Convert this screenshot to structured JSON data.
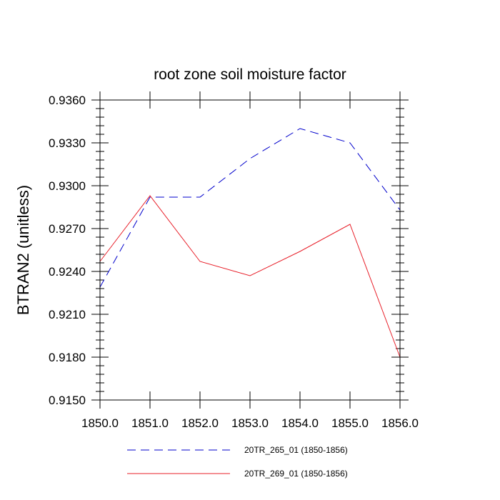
{
  "chart_data": {
    "type": "line",
    "title": "root zone soil moisture factor",
    "xlabel": "",
    "ylabel": "BTRAN2  (unitless)",
    "xlim": [
      1850,
      1856
    ],
    "ylim": [
      0.915,
      0.936
    ],
    "x": [
      1850,
      1851,
      1852,
      1853,
      1854,
      1855,
      1856
    ],
    "xticks": [
      "1850.0",
      "1851.0",
      "1852.0",
      "1853.0",
      "1854.0",
      "1855.0",
      "1856.0"
    ],
    "yticks": [
      "0.9150",
      "0.9180",
      "0.9210",
      "0.9240",
      "0.9270",
      "0.9300",
      "0.9330",
      "0.9360"
    ],
    "ytick_values": [
      0.915,
      0.918,
      0.921,
      0.924,
      0.927,
      0.93,
      0.933,
      0.936
    ],
    "grid": false,
    "legend_position": "bottom",
    "series": [
      {
        "name": "20TR_265_01 (1850-1856)",
        "color": "#0000cc",
        "dash": "dashed",
        "values": [
          0.9229,
          0.9292,
          0.9292,
          0.9319,
          0.934,
          0.933,
          0.9283
        ]
      },
      {
        "name": "20TR_269_01 (1850-1856)",
        "color": "#e8202a",
        "dash": "solid",
        "values": [
          0.9247,
          0.9293,
          0.9247,
          0.9237,
          0.9254,
          0.9273,
          0.918
        ]
      }
    ]
  }
}
